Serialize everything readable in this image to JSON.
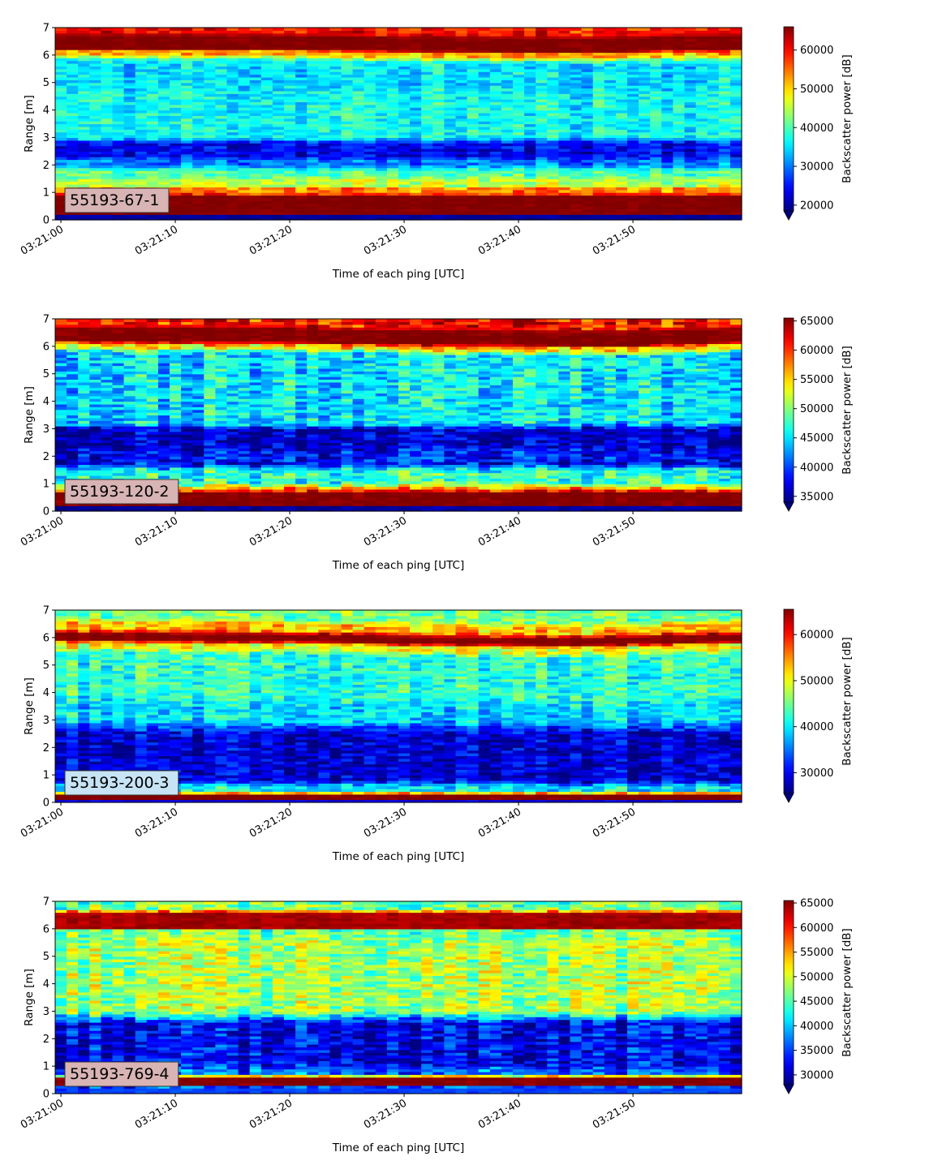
{
  "chart_data": [
    {
      "type": "heatmap",
      "label": "55193-67-1",
      "label_box_color": "#d8b4b4",
      "xlabel": "Time of each ping [UTC]",
      "ylabel": "Range [m]",
      "x_ticks": [
        "03:21:00",
        "03:21:10",
        "03:21:20",
        "03:21:30",
        "03:21:40",
        "03:21:50"
      ],
      "x_tick_seconds": [
        0,
        10,
        20,
        30,
        40,
        50
      ],
      "xlim_seconds": [
        -0.5,
        59.5
      ],
      "y_ticks": [
        "0",
        "1",
        "2",
        "3",
        "4",
        "5",
        "6",
        "7"
      ],
      "ylim": [
        0,
        7
      ],
      "colorbar_label": "Backscatter power [dB]",
      "colorbar_ticks": [
        "20000",
        "30000",
        "40000",
        "50000",
        "60000"
      ],
      "colorbar_tick_values": [
        20000,
        30000,
        40000,
        50000,
        60000
      ],
      "clim": [
        18500,
        66000
      ],
      "colorbar_extend": "min",
      "colormap": "jet",
      "range_profile": [
        [
          0.0,
          0.2,
          20000
        ],
        [
          0.2,
          0.85,
          66000
        ],
        [
          1.0,
          1.2,
          54000
        ],
        [
          1.2,
          1.45,
          45000
        ],
        [
          1.6,
          1.8,
          40000
        ],
        [
          2.0,
          2.2,
          30000
        ],
        [
          2.3,
          2.8,
          24000
        ],
        [
          3.0,
          3.5,
          37000
        ],
        [
          4.0,
          4.5,
          37000
        ],
        [
          5.0,
          5.8,
          35000
        ],
        [
          6.05,
          6.15,
          52000
        ],
        [
          6.25,
          6.7,
          66000
        ],
        [
          6.85,
          6.95,
          60000
        ],
        [
          7.0,
          7.0,
          58000
        ]
      ],
      "texture_amplitude": 5500,
      "surface_range": [
        [
          0,
          6.1
        ],
        [
          15,
          6.1
        ],
        [
          20,
          6.08
        ],
        [
          30,
          6.02
        ],
        [
          40,
          6.0
        ],
        [
          45,
          5.98
        ],
        [
          59,
          6.08
        ]
      ],
      "seed": 11
    },
    {
      "type": "heatmap",
      "label": "55193-120-2",
      "label_box_color": "#d8b4b4",
      "xlabel": "Time of each ping [UTC]",
      "ylabel": "Range [m]",
      "x_ticks": [
        "03:21:00",
        "03:21:10",
        "03:21:20",
        "03:21:30",
        "03:21:40",
        "03:21:50"
      ],
      "x_tick_seconds": [
        0,
        10,
        20,
        30,
        40,
        50
      ],
      "xlim_seconds": [
        -0.5,
        59.5
      ],
      "y_ticks": [
        "0",
        "1",
        "2",
        "3",
        "4",
        "5",
        "6",
        "7"
      ],
      "ylim": [
        0,
        7
      ],
      "colorbar_label": "Backscatter power [dB]",
      "colorbar_ticks": [
        "35000",
        "40000",
        "45000",
        "50000",
        "55000",
        "60000",
        "65000"
      ],
      "colorbar_tick_values": [
        35000,
        40000,
        45000,
        50000,
        55000,
        60000,
        65000
      ],
      "clim": [
        34000,
        65500
      ],
      "colorbar_extend": "min",
      "colormap": "jet",
      "range_profile": [
        [
          0.0,
          0.2,
          35000
        ],
        [
          0.2,
          0.7,
          65500
        ],
        [
          0.8,
          0.9,
          56000
        ],
        [
          1.0,
          1.5,
          47000
        ],
        [
          1.7,
          2.2,
          38000
        ],
        [
          2.4,
          3.0,
          36000
        ],
        [
          3.2,
          4.0,
          45000
        ],
        [
          4.2,
          5.8,
          45000
        ],
        [
          6.0,
          6.1,
          55000
        ],
        [
          6.2,
          6.65,
          65500
        ],
        [
          6.8,
          7.0,
          61000
        ]
      ],
      "texture_amplitude": 5000,
      "surface_range": [
        [
          0,
          6.1
        ],
        [
          20,
          6.08
        ],
        [
          30,
          6.0
        ],
        [
          45,
          5.95
        ],
        [
          50,
          5.95
        ],
        [
          59,
          6.08
        ]
      ],
      "seed": 23
    },
    {
      "type": "heatmap",
      "label": "55193-200-3",
      "label_box_color": "#c6e4f5",
      "xlabel": "Time of each ping [UTC]",
      "ylabel": "Range [m]",
      "x_ticks": [
        "03:21:00",
        "03:21:10",
        "03:21:20",
        "03:21:30",
        "03:21:40",
        "03:21:50"
      ],
      "x_tick_seconds": [
        0,
        10,
        20,
        30,
        40,
        50
      ],
      "xlim_seconds": [
        -0.5,
        59.5
      ],
      "y_ticks": [
        "0",
        "1",
        "2",
        "3",
        "4",
        "5",
        "6",
        "7"
      ],
      "ylim": [
        0,
        7
      ],
      "colorbar_label": "Backscatter power [dB]",
      "colorbar_ticks": [
        "30000",
        "40000",
        "50000",
        "60000"
      ],
      "colorbar_tick_values": [
        30000,
        40000,
        50000,
        60000
      ],
      "clim": [
        25500,
        65500
      ],
      "colorbar_extend": "min",
      "colormap": "jet",
      "range_profile": [
        [
          0.0,
          0.1,
          30000
        ],
        [
          0.15,
          0.3,
          65500
        ],
        [
          0.4,
          0.6,
          40000
        ],
        [
          0.8,
          2.5,
          28500
        ],
        [
          3.0,
          3.6,
          39000
        ],
        [
          4.0,
          5.5,
          42000
        ],
        [
          5.7,
          5.85,
          50000
        ],
        [
          6.0,
          6.2,
          65500
        ],
        [
          6.4,
          6.6,
          53000
        ],
        [
          6.8,
          7.0,
          45000
        ]
      ],
      "texture_amplitude": 5500,
      "surface_range": [
        [
          0,
          6.05
        ],
        [
          20,
          6.0
        ],
        [
          30,
          5.92
        ],
        [
          45,
          5.85
        ],
        [
          59,
          6.0
        ]
      ],
      "seed": 37
    },
    {
      "type": "heatmap",
      "label": "55193-769-4",
      "label_box_color": "#d8b4b4",
      "xlabel": "Time of each ping [UTC]",
      "ylabel": "Range [m]",
      "x_ticks": [
        "03:21:00",
        "03:21:10",
        "03:21:20",
        "03:21:30",
        "03:21:40",
        "03:21:50"
      ],
      "x_tick_seconds": [
        0,
        10,
        20,
        30,
        40,
        50
      ],
      "xlim_seconds": [
        -0.5,
        59.5
      ],
      "y_ticks": [
        "0",
        "1",
        "2",
        "3",
        "4",
        "5",
        "6",
        "7"
      ],
      "ylim": [
        0,
        7
      ],
      "colorbar_label": "Backscatter power [dB]",
      "colorbar_ticks": [
        "30000",
        "35000",
        "40000",
        "45000",
        "50000",
        "55000",
        "60000",
        "65000"
      ],
      "colorbar_tick_values": [
        30000,
        35000,
        40000,
        45000,
        50000,
        55000,
        60000,
        65000
      ],
      "clim": [
        28000,
        65500
      ],
      "colorbar_extend": "min",
      "colormap": "jet",
      "range_profile": [
        [
          0.0,
          0.25,
          35000
        ],
        [
          0.3,
          0.6,
          65500
        ],
        [
          0.7,
          0.9,
          36000
        ],
        [
          1.0,
          2.6,
          32000
        ],
        [
          3.0,
          5.5,
          48000
        ],
        [
          5.8,
          6.0,
          46000
        ],
        [
          6.05,
          6.6,
          64000
        ],
        [
          6.7,
          7.0,
          46000
        ]
      ],
      "texture_amplitude": 6000,
      "surface_range": [
        [
          0,
          6.1
        ],
        [
          59,
          6.1
        ]
      ],
      "seed": 53
    }
  ]
}
